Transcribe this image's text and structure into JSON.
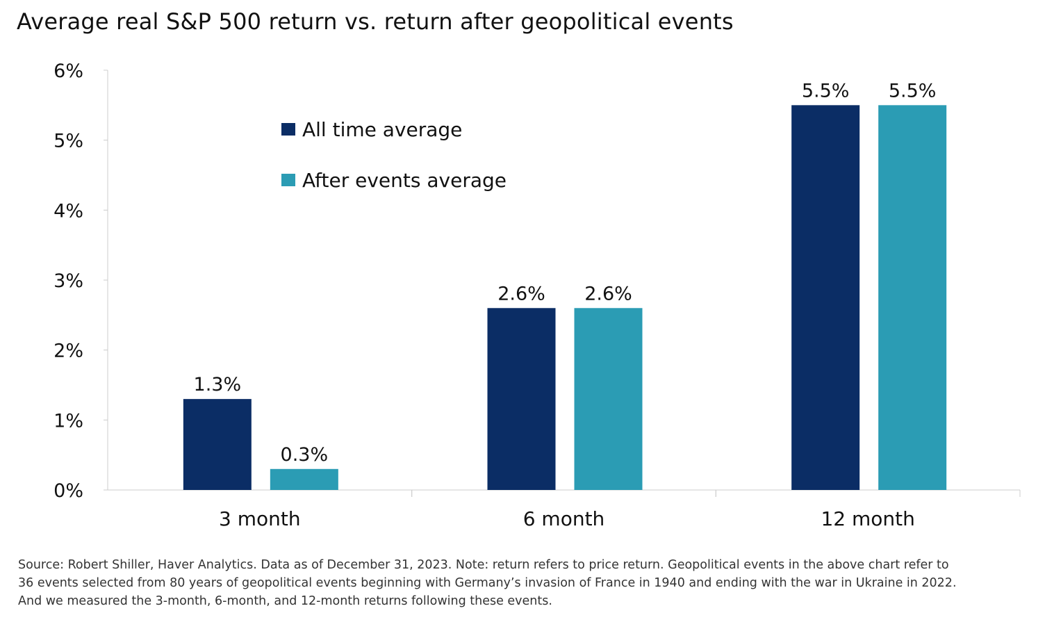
{
  "chart_data": {
    "type": "bar",
    "title": "Average real S&P 500 return vs. return after geopolitical events",
    "categories": [
      "3 month",
      "6 month",
      "12 month"
    ],
    "series": [
      {
        "name": "All time average",
        "values": [
          1.3,
          2.6,
          5.5
        ],
        "labels": [
          "1.3%",
          "2.6%",
          "5.5%"
        ],
        "color": "#0b2d65"
      },
      {
        "name": "After events average",
        "values": [
          0.3,
          2.6,
          5.5
        ],
        "labels": [
          "0.3%",
          "2.6%",
          "5.5%"
        ],
        "color": "#2b9cb4"
      }
    ],
    "xlabel": "",
    "ylabel": "",
    "ylim": [
      0,
      6
    ],
    "yticks": [
      "0%",
      "1%",
      "2%",
      "3%",
      "4%",
      "5%",
      "6%"
    ],
    "grid": false,
    "legend_position": "top-left"
  },
  "footnote": [
    "Source: Robert Shiller, Haver Analytics. Data as of December 31, 2023. Note: return refers to price return. Geopolitical events in the above chart refer to",
    "36 events selected from 80 years of geopolitical events beginning with Germany’s invasion of France in 1940 and ending with the war in Ukraine in 2022.",
    "And we measured the 3-month, 6-month, and 12-month returns following these events."
  ]
}
